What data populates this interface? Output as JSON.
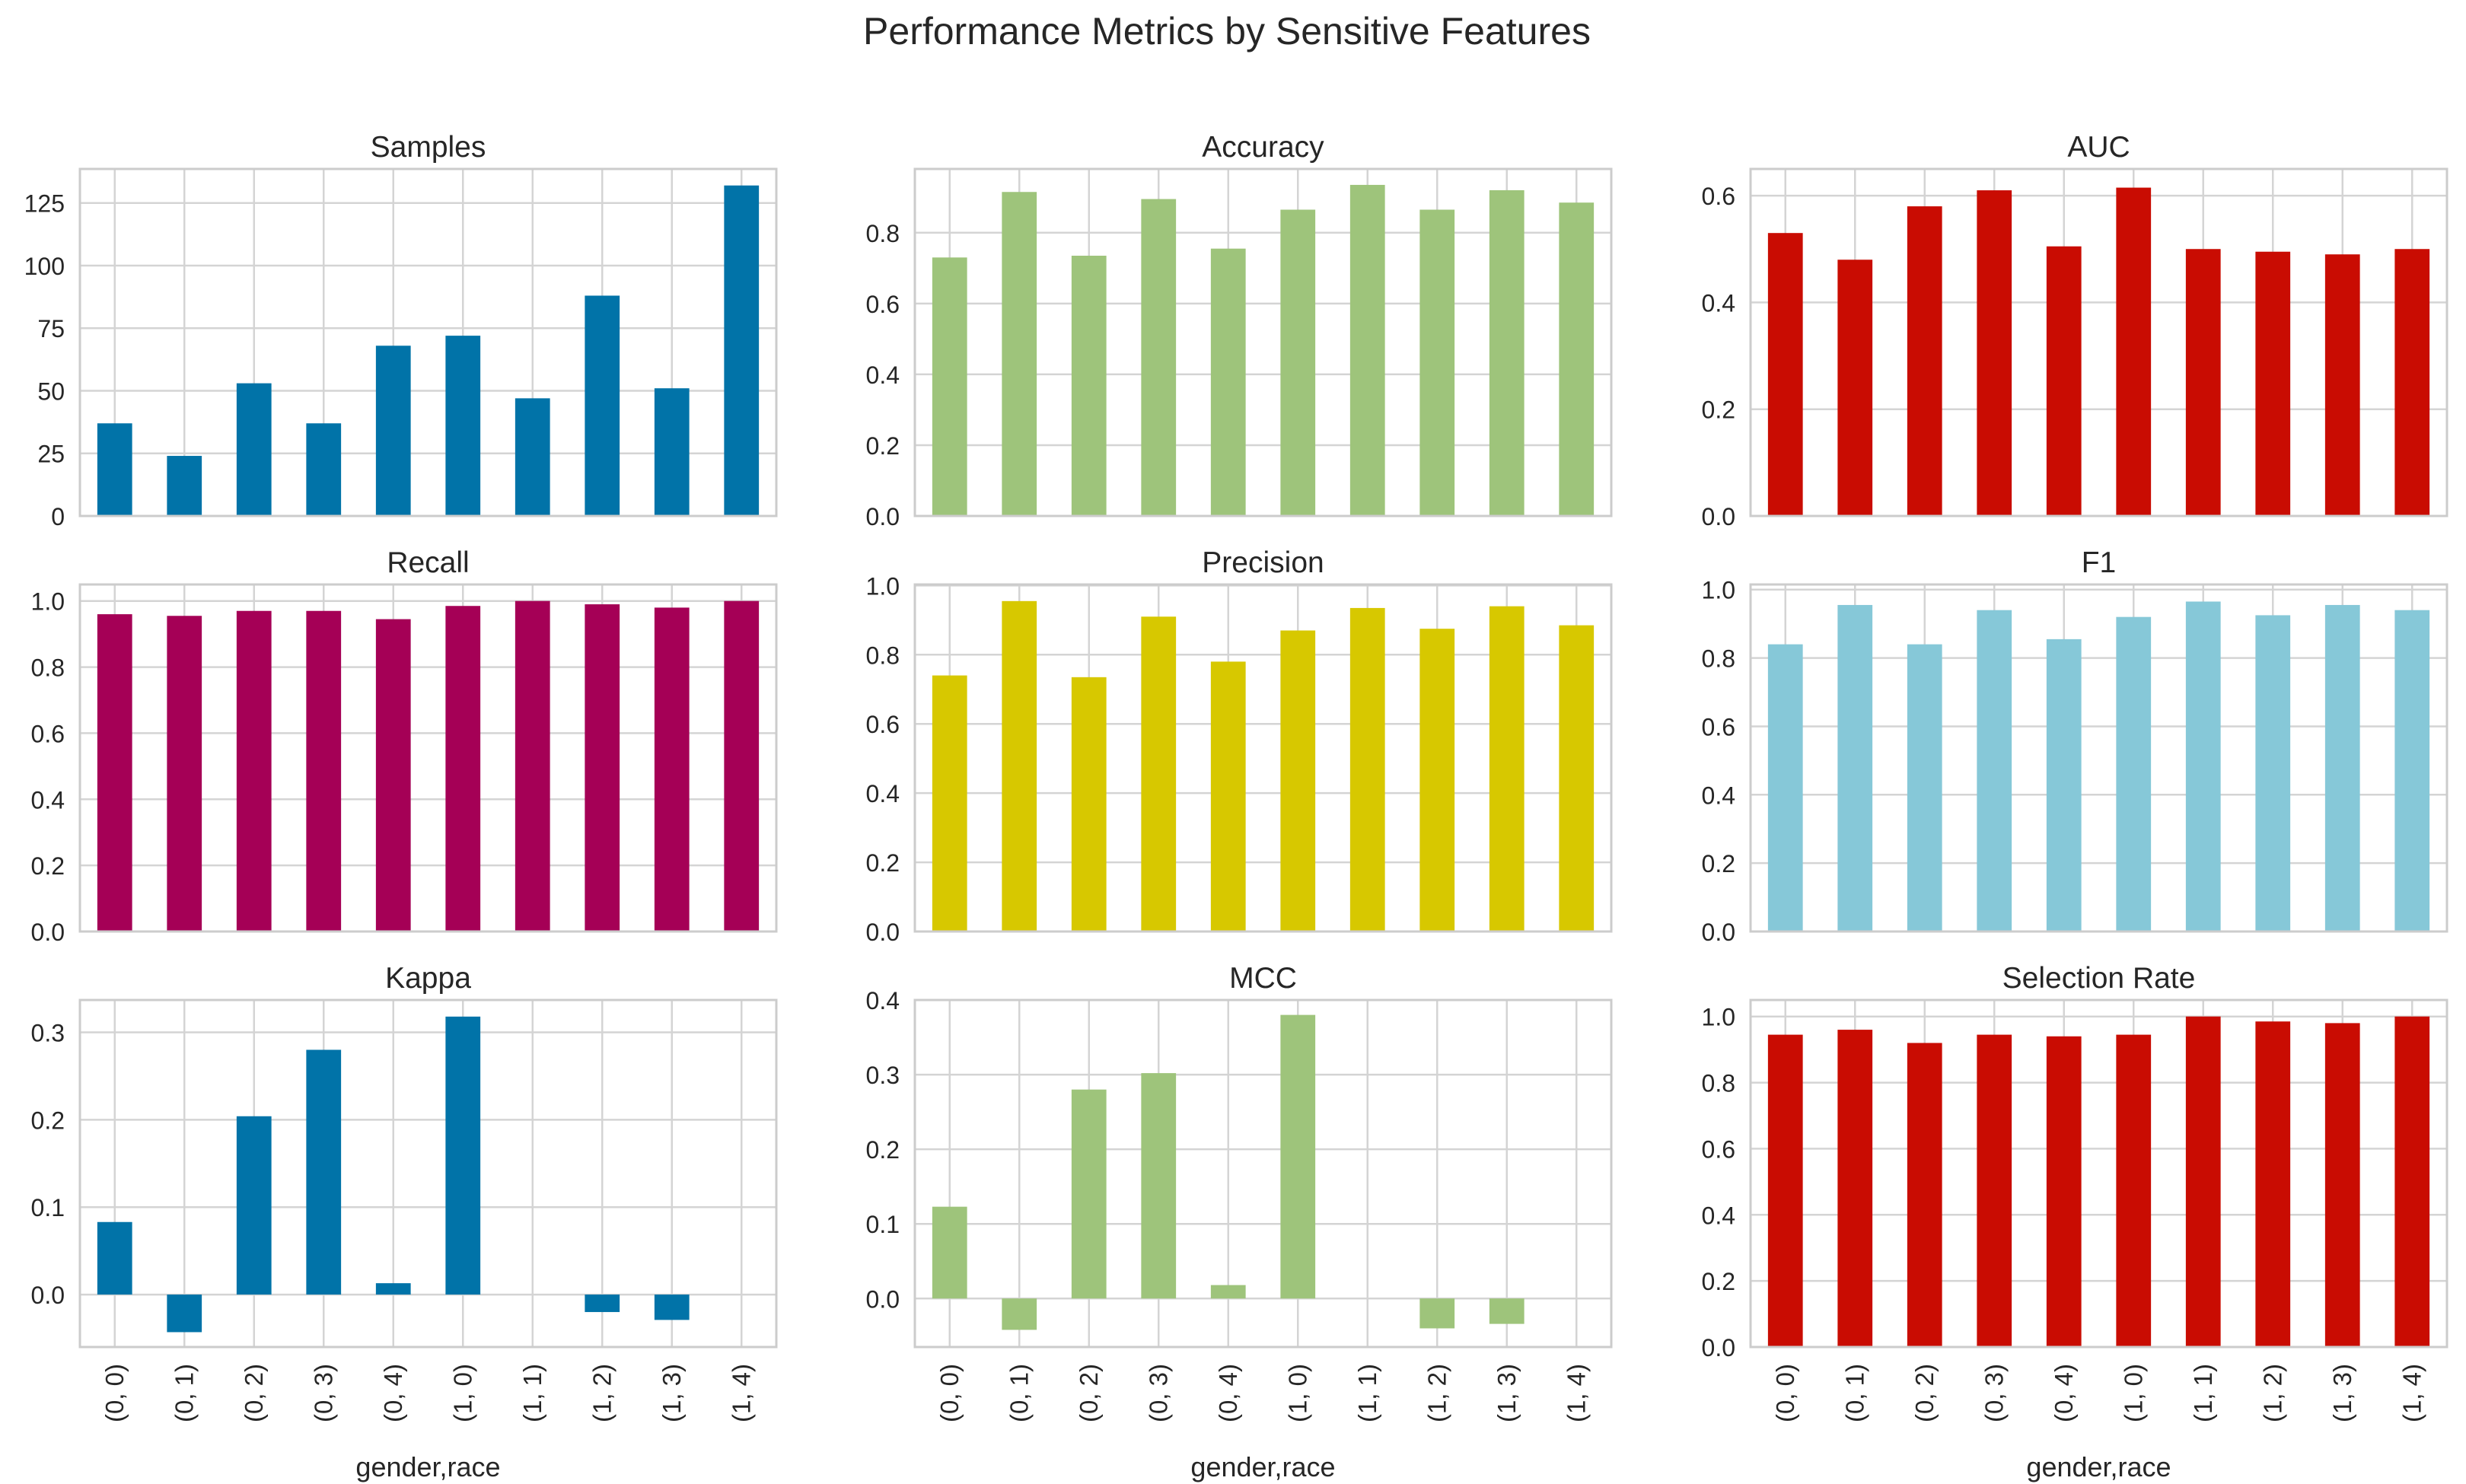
{
  "figure": {
    "title": "Performance Metrics by Sensitive Features",
    "xlabel": "gender,race"
  },
  "chart_data": [
    {
      "type": "bar",
      "title": "Samples",
      "color": "#0173a8",
      "categories": [
        "(0, 0)",
        "(0, 1)",
        "(0, 2)",
        "(0, 3)",
        "(0, 4)",
        "(1, 0)",
        "(1, 1)",
        "(1, 2)",
        "(1, 3)",
        "(1, 4)"
      ],
      "values": [
        37,
        24,
        53,
        37,
        68,
        72,
        47,
        88,
        51,
        132
      ],
      "ylim": [
        0,
        138.6
      ],
      "yticks": [
        0,
        25,
        50,
        75,
        100,
        125
      ],
      "ytick_labels": [
        "0",
        "25",
        "50",
        "75",
        "100",
        "125"
      ]
    },
    {
      "type": "bar",
      "title": "Accuracy",
      "color": "#9ec47b",
      "categories": [
        "(0, 0)",
        "(0, 1)",
        "(0, 2)",
        "(0, 3)",
        "(0, 4)",
        "(1, 0)",
        "(1, 1)",
        "(1, 2)",
        "(1, 3)",
        "(1, 4)"
      ],
      "values": [
        0.73,
        0.915,
        0.735,
        0.895,
        0.755,
        0.865,
        0.935,
        0.865,
        0.92,
        0.885
      ],
      "ylim": [
        0,
        0.98
      ],
      "yticks": [
        0,
        0.2,
        0.4,
        0.6,
        0.8
      ],
      "ytick_labels": [
        "0.0",
        "0.2",
        "0.4",
        "0.6",
        "0.8"
      ]
    },
    {
      "type": "bar",
      "title": "AUC",
      "color": "#c90c02",
      "categories": [
        "(0, 0)",
        "(0, 1)",
        "(0, 2)",
        "(0, 3)",
        "(0, 4)",
        "(1, 0)",
        "(1, 1)",
        "(1, 2)",
        "(1, 3)",
        "(1, 4)"
      ],
      "values": [
        0.53,
        0.48,
        0.58,
        0.61,
        0.505,
        0.615,
        0.5,
        0.495,
        0.49,
        0.5
      ],
      "ylim": [
        0,
        0.65
      ],
      "yticks": [
        0,
        0.2,
        0.4,
        0.6
      ],
      "ytick_labels": [
        "0.0",
        "0.2",
        "0.4",
        "0.6"
      ]
    },
    {
      "type": "bar",
      "title": "Recall",
      "color": "#a50056",
      "categories": [
        "(0, 0)",
        "(0, 1)",
        "(0, 2)",
        "(0, 3)",
        "(0, 4)",
        "(1, 0)",
        "(1, 1)",
        "(1, 2)",
        "(1, 3)",
        "(1, 4)"
      ],
      "values": [
        0.96,
        0.955,
        0.97,
        0.97,
        0.945,
        0.985,
        1.0,
        0.99,
        0.98,
        1.0
      ],
      "ylim": [
        0,
        1.05
      ],
      "yticks": [
        0,
        0.2,
        0.4,
        0.6,
        0.8,
        1.0
      ],
      "ytick_labels": [
        "0.0",
        "0.2",
        "0.4",
        "0.6",
        "0.8",
        "1.0"
      ]
    },
    {
      "type": "bar",
      "title": "Precision",
      "color": "#d7c800",
      "categories": [
        "(0, 0)",
        "(0, 1)",
        "(0, 2)",
        "(0, 3)",
        "(0, 4)",
        "(1, 0)",
        "(1, 1)",
        "(1, 2)",
        "(1, 3)",
        "(1, 4)"
      ],
      "values": [
        0.74,
        0.955,
        0.735,
        0.91,
        0.78,
        0.87,
        0.935,
        0.875,
        0.94,
        0.885
      ],
      "ylim": [
        0,
        1.003
      ],
      "yticks": [
        0,
        0.2,
        0.4,
        0.6,
        0.8,
        1.0
      ],
      "ytick_labels": [
        "0.0",
        "0.2",
        "0.4",
        "0.6",
        "0.8",
        "1.0"
      ]
    },
    {
      "type": "bar",
      "title": "F1",
      "color": "#86c8d8",
      "categories": [
        "(0, 0)",
        "(0, 1)",
        "(0, 2)",
        "(0, 3)",
        "(0, 4)",
        "(1, 0)",
        "(1, 1)",
        "(1, 2)",
        "(1, 3)",
        "(1, 4)"
      ],
      "values": [
        0.84,
        0.955,
        0.84,
        0.94,
        0.855,
        0.92,
        0.965,
        0.925,
        0.955,
        0.94
      ],
      "ylim": [
        0,
        1.015
      ],
      "yticks": [
        0,
        0.2,
        0.4,
        0.6,
        0.8,
        1.0
      ],
      "ytick_labels": [
        "0.0",
        "0.2",
        "0.4",
        "0.6",
        "0.8",
        "1.0"
      ]
    },
    {
      "type": "bar",
      "title": "Kappa",
      "color": "#0173a8",
      "categories": [
        "(0, 0)",
        "(0, 1)",
        "(0, 2)",
        "(0, 3)",
        "(0, 4)",
        "(1, 0)",
        "(1, 1)",
        "(1, 2)",
        "(1, 3)",
        "(1, 4)"
      ],
      "values": [
        0.083,
        -0.043,
        0.204,
        0.28,
        0.013,
        0.318,
        0.0,
        -0.02,
        -0.029,
        0.0
      ],
      "ylim": [
        -0.06,
        0.337
      ],
      "yticks": [
        0,
        0.1,
        0.2,
        0.3
      ],
      "ytick_labels": [
        "0.0",
        "0.1",
        "0.2",
        "0.3"
      ]
    },
    {
      "type": "bar",
      "title": "MCC",
      "color": "#9ec47b",
      "categories": [
        "(0, 0)",
        "(0, 1)",
        "(0, 2)",
        "(0, 3)",
        "(0, 4)",
        "(1, 0)",
        "(1, 1)",
        "(1, 2)",
        "(1, 3)",
        "(1, 4)"
      ],
      "values": [
        0.123,
        -0.042,
        0.28,
        0.302,
        0.018,
        0.38,
        0.0,
        -0.04,
        -0.034,
        0.0
      ],
      "ylim": [
        -0.065,
        0.4
      ],
      "yticks": [
        0,
        0.1,
        0.2,
        0.3,
        0.4
      ],
      "ytick_labels": [
        "0.0",
        "0.1",
        "0.2",
        "0.3",
        "0.4"
      ]
    },
    {
      "type": "bar",
      "title": "Selection Rate",
      "color": "#c90c02",
      "categories": [
        "(0, 0)",
        "(0, 1)",
        "(0, 2)",
        "(0, 3)",
        "(0, 4)",
        "(1, 0)",
        "(1, 1)",
        "(1, 2)",
        "(1, 3)",
        "(1, 4)"
      ],
      "values": [
        0.945,
        0.96,
        0.92,
        0.945,
        0.94,
        0.945,
        1.0,
        0.985,
        0.98,
        1.0
      ],
      "ylim": [
        0,
        1.05
      ],
      "yticks": [
        0,
        0.2,
        0.4,
        0.6,
        0.8,
        1.0
      ],
      "ytick_labels": [
        "0.0",
        "0.2",
        "0.4",
        "0.6",
        "0.8",
        "1.0"
      ]
    }
  ]
}
